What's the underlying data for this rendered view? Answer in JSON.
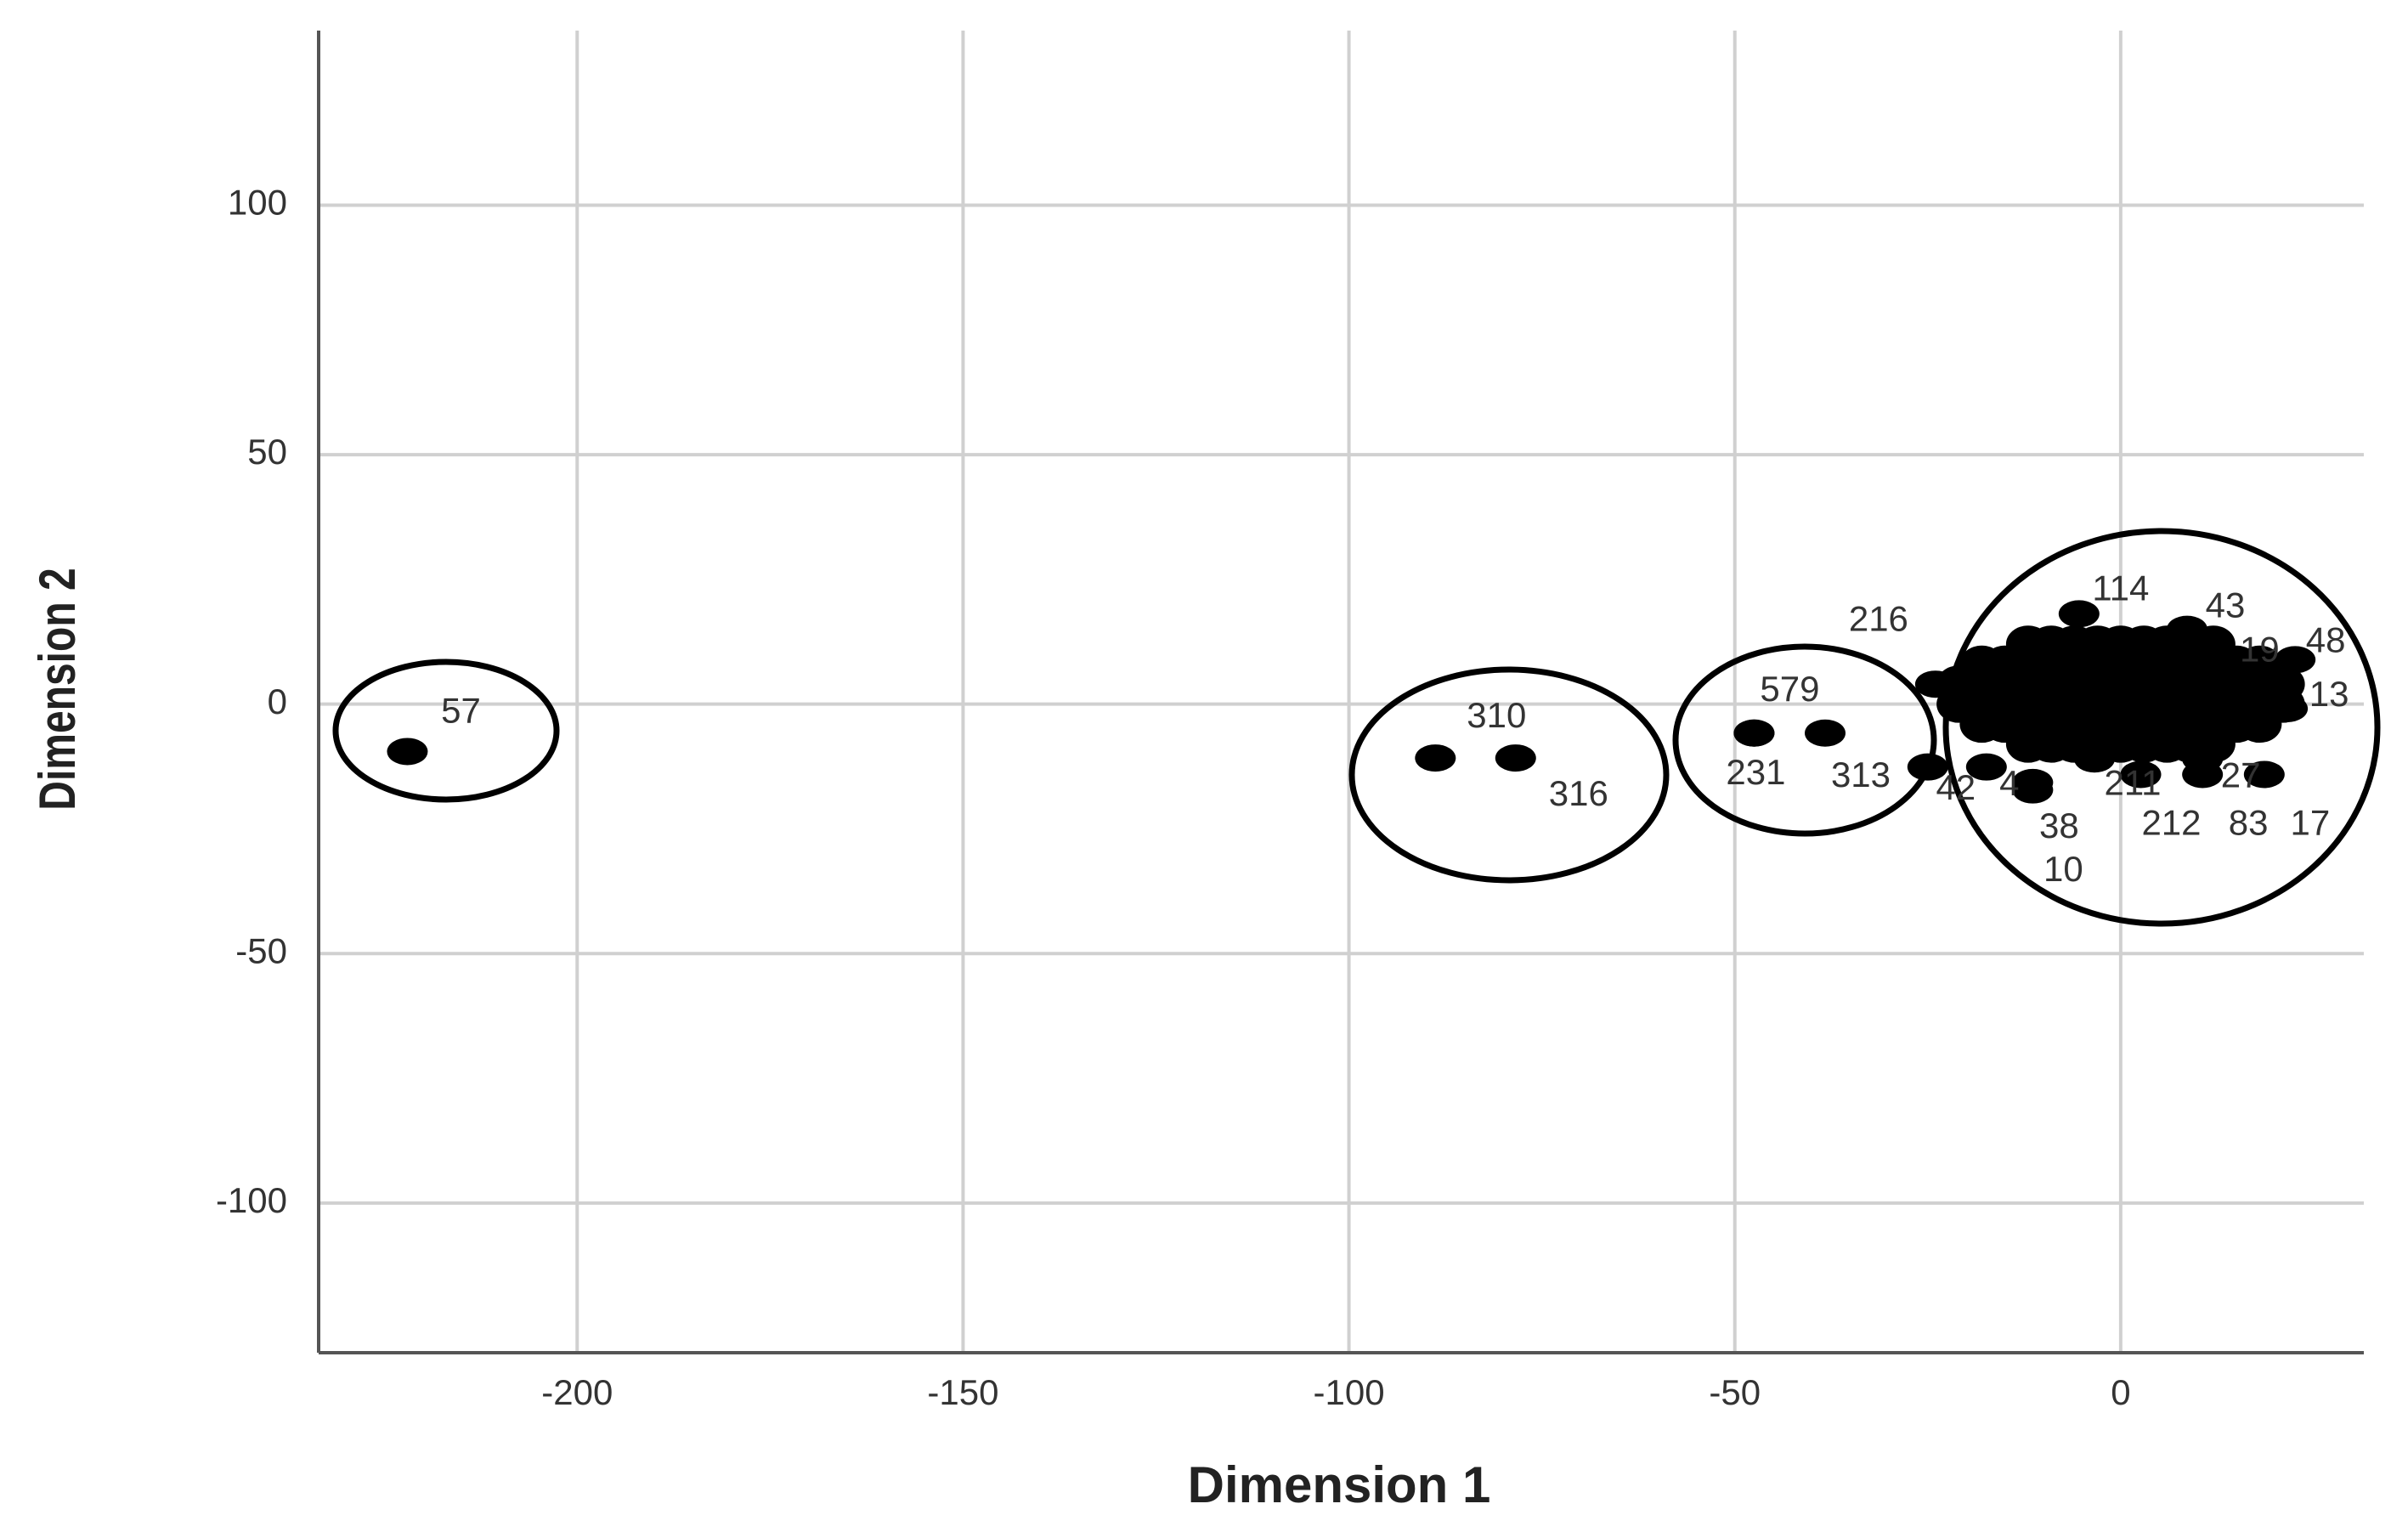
{
  "chart_data": {
    "type": "scatter",
    "x_label": "Dimension 1",
    "y_label": "Dimension 2",
    "xlim": [
      -233.5,
      31.5
    ],
    "ylim": [
      -130,
      135
    ],
    "xticks": [
      -200,
      -150,
      -100,
      -50,
      0
    ],
    "yticks": [
      -100,
      -50,
      0,
      50,
      100
    ],
    "grid": true,
    "color": "#000000",
    "x": [
      -222,
      -88.8,
      -78.4,
      -47.5,
      -47.5,
      -38.3,
      -24,
      -5.4,
      8.6,
      12.6,
      22.6,
      21.6,
      10.6,
      -3.4,
      2.6,
      10.6,
      18.6,
      -11.4,
      -11.4,
      -25,
      -17.4,
      -12,
      -9,
      -6,
      -3,
      0,
      3,
      6,
      9,
      12,
      -18,
      -15,
      -12,
      -9,
      -6,
      -3,
      0,
      3,
      6,
      9,
      12,
      15,
      18,
      -21,
      -18,
      -15,
      -12,
      -9,
      -6,
      -3,
      0,
      3,
      6,
      9,
      12,
      15,
      18,
      21,
      -21,
      -18,
      -15,
      -12,
      -9,
      -6,
      -3,
      0,
      3,
      6,
      9,
      12,
      15,
      18,
      21,
      -18,
      -15,
      -12,
      -9,
      -6,
      -3,
      0,
      3,
      6,
      9,
      12,
      15,
      18,
      -12,
      -9,
      -6,
      -3,
      0,
      3,
      6,
      9,
      12
    ],
    "y": [
      -9.5,
      -10.8,
      -10.8,
      -5.8,
      -5.8,
      -5.8,
      4,
      18.1,
      15,
      8.9,
      8.9,
      -0.9,
      -11,
      -11,
      -14.1,
      -14.1,
      -14.1,
      -15.7,
      -17.2,
      -12.6,
      -12.6,
      -8,
      -8,
      -8,
      -8,
      -8,
      -8,
      -8,
      -8,
      -8,
      -4,
      -4,
      -4,
      -4,
      -4,
      -4,
      -4,
      -4,
      -4,
      -4,
      -4,
      -4,
      -4,
      0,
      0,
      0,
      0,
      0,
      0,
      0,
      0,
      0,
      0,
      0,
      0,
      0,
      0,
      0,
      4,
      4,
      4,
      4,
      4,
      4,
      4,
      4,
      4,
      4,
      4,
      4,
      4,
      4,
      4,
      8,
      8,
      8,
      8,
      8,
      8,
      8,
      8,
      8,
      8,
      8,
      8,
      8,
      12,
      12,
      12,
      12,
      12,
      12,
      12,
      12,
      12
    ],
    "labels": [
      "57",
      "310",
      "316",
      "579",
      "231",
      "313",
      "216",
      "114",
      "43",
      "19",
      "48",
      "13",
      "27",
      "211",
      "212",
      "83",
      "17",
      "38",
      "10",
      "42",
      "4",
      null,
      null,
      null,
      null,
      null,
      null,
      null,
      null,
      null,
      null,
      null,
      null,
      null,
      null,
      null,
      null,
      null,
      null,
      null,
      null,
      null,
      null,
      null,
      null,
      null,
      null,
      null,
      null,
      null,
      null,
      null,
      null,
      null,
      null,
      null,
      null,
      null,
      null,
      null,
      null,
      null,
      null,
      null,
      null,
      null,
      null,
      null,
      null,
      null,
      null,
      null,
      null,
      null,
      null,
      null,
      null,
      null,
      null,
      null,
      null,
      null,
      null,
      null,
      null,
      null,
      null,
      null,
      null,
      null,
      null,
      null,
      null,
      null,
      null
    ]
  }
}
